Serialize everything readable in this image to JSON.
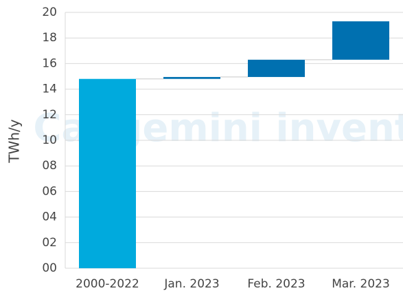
{
  "chart_data": {
    "type": "waterfall",
    "y_label": "TWh/y",
    "watermark": "Capgemini invent",
    "categories": [
      "2000-2022",
      "Jan. 2023",
      "Feb. 2023",
      "Mar. 2023"
    ],
    "values": [
      14.8,
      0.15,
      1.35,
      3.0
    ],
    "colors": [
      "#00aadd",
      "#0070b0",
      "#0070b0",
      "#0070b0"
    ],
    "ylim": [
      0,
      20
    ],
    "yticks": [
      {
        "value": 0,
        "label": "00"
      },
      {
        "value": 2,
        "label": "02"
      },
      {
        "value": 4,
        "label": "04"
      },
      {
        "value": 6,
        "label": "06"
      },
      {
        "value": 8,
        "label": "08"
      },
      10,
      12,
      14,
      16,
      18,
      20
    ],
    "grid": true
  }
}
